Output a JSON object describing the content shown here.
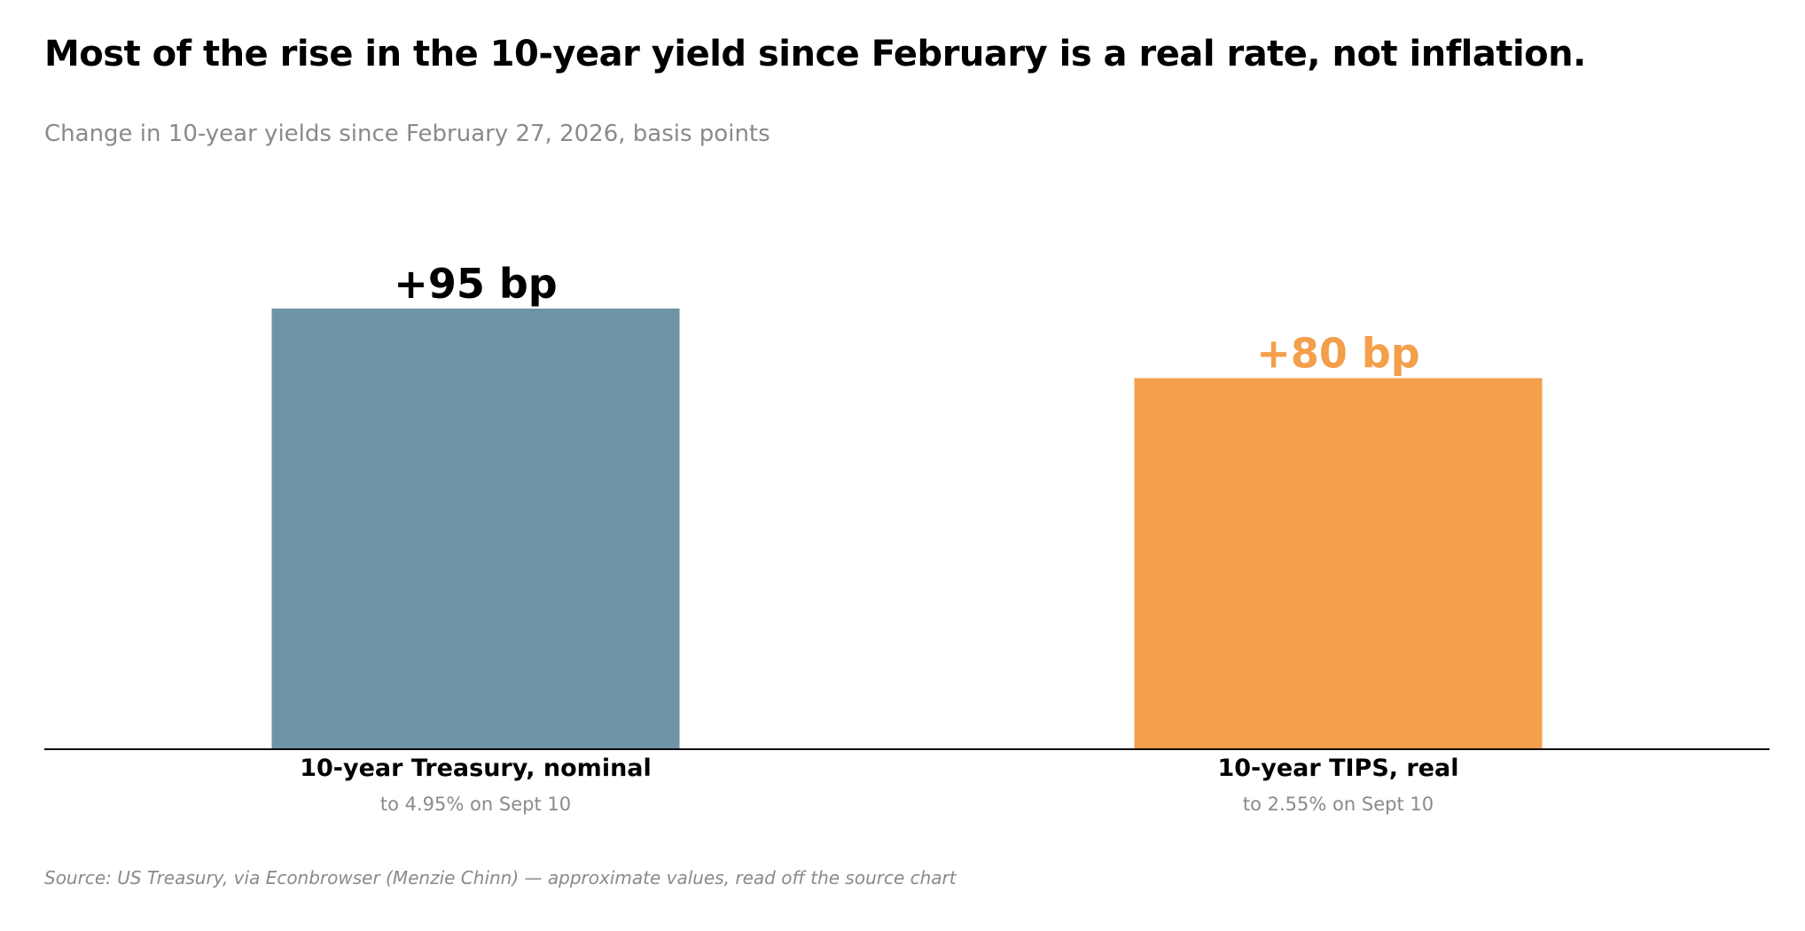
{
  "header": {
    "title": "Most of the rise in the 10-year yield since February is a real rate, not inflation.",
    "subtitle": "Change in 10-year yields since February 27, 2026, basis points"
  },
  "footer": {
    "source": "Source: US Treasury, via Econbrowser (Menzie Chinn) — approximate values, read off the source chart"
  },
  "chart_data": {
    "type": "bar",
    "title": "Most of the rise in the 10-year yield since February is a real rate, not inflation.",
    "subtitle": "Change in 10-year yields since February 27, 2026, basis points",
    "categories": [
      "10-year Treasury, nominal",
      "10-year TIPS, real"
    ],
    "category_notes": [
      "to 4.95% on Sept 10",
      "to 2.55% on Sept 10"
    ],
    "values": [
      95,
      80
    ],
    "value_labels": [
      "+95 bp",
      "+80 bp"
    ],
    "bar_colors": [
      "#6e94a5",
      "#f39f4b"
    ],
    "value_label_colors": [
      "#000000",
      "#f39f4b"
    ],
    "ylim": [
      0,
      95
    ],
    "grid": false,
    "legend": "none",
    "xlabel": "",
    "ylabel": ""
  }
}
